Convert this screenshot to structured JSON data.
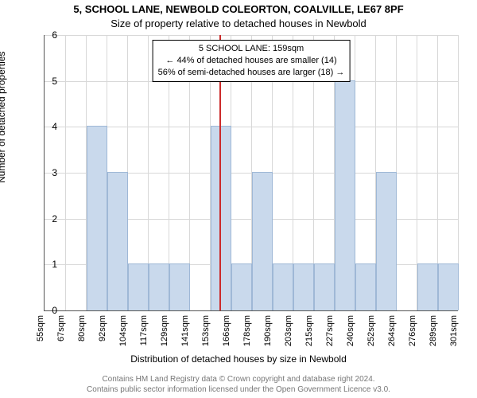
{
  "title_line1": "5, SCHOOL LANE, NEWBOLD COLEORTON, COALVILLE, LE67 8PF",
  "title_line2": "Size of property relative to detached houses in Newbold",
  "ylabel": "Number of detached properties",
  "xlabel": "Distribution of detached houses by size in Newbold",
  "footer_line1": "Contains HM Land Registry data © Crown copyright and database right 2024.",
  "footer_line2": "Contains public sector information licensed under the Open Government Licence v3.0.",
  "annot": {
    "line1": "5 SCHOOL LANE: 159sqm",
    "line2": "← 44% of detached houses are smaller (14)",
    "line3": "56% of semi-detached houses are larger (18) →"
  },
  "chart": {
    "type": "histogram",
    "ylim": [
      0,
      6
    ],
    "yticks": [
      0,
      1,
      2,
      3,
      4,
      5,
      6
    ],
    "xticks": [
      "55sqm",
      "67sqm",
      "80sqm",
      "92sqm",
      "104sqm",
      "117sqm",
      "129sqm",
      "141sqm",
      "153sqm",
      "166sqm",
      "178sqm",
      "190sqm",
      "203sqm",
      "215sqm",
      "227sqm",
      "240sqm",
      "252sqm",
      "264sqm",
      "276sqm",
      "289sqm",
      "301sqm"
    ],
    "bar_values": [
      0,
      0,
      4,
      3,
      1,
      1,
      1,
      0,
      4,
      1,
      3,
      1,
      1,
      1,
      5,
      1,
      3,
      0,
      1,
      1
    ],
    "bar_color": "#c9d9ec",
    "bar_border": "#9fb8d6",
    "grid_color": "#d8d8d8",
    "axis_color": "#555555",
    "marker_color": "#cc2b2b",
    "marker_value_index": 8.45,
    "background": "#ffffff",
    "tick_fontsize": 11,
    "label_fontsize": 12,
    "title_fontsize": 13
  }
}
